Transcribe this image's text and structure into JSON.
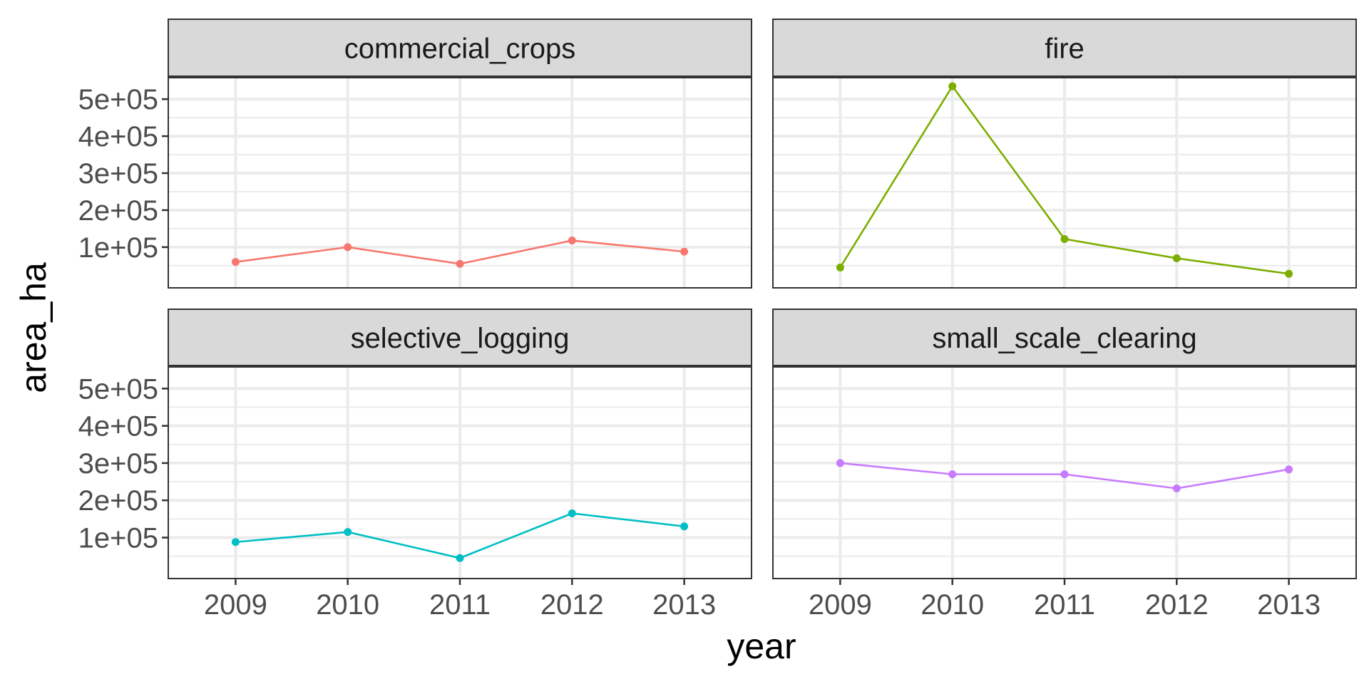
{
  "chart_data": {
    "type": "line",
    "layout": "facet_wrap 2x2",
    "xlabel": "year",
    "ylabel": "area_ha",
    "x": [
      2009,
      2010,
      2011,
      2012,
      2013
    ],
    "x_tick_labels": [
      "2009",
      "2010",
      "2011",
      "2012",
      "2013"
    ],
    "xlim": [
      2008.4,
      2013.6
    ],
    "ylim": [
      -10000,
      560000
    ],
    "y_ticks": [
      100000,
      200000,
      300000,
      400000,
      500000
    ],
    "y_tick_labels": [
      "1e+05",
      "2e+05",
      "3e+05",
      "4e+05",
      "5e+05"
    ],
    "grid": true,
    "series": [
      {
        "name": "commercial_crops",
        "color": "#F8766D",
        "values": [
          60000,
          100000,
          55000,
          118000,
          88000
        ]
      },
      {
        "name": "fire",
        "color": "#7CAE00",
        "values": [
          45000,
          535000,
          122000,
          70000,
          28000
        ]
      },
      {
        "name": "selective_logging",
        "color": "#00BFC4",
        "values": [
          88000,
          115000,
          45000,
          165000,
          130000
        ]
      },
      {
        "name": "small_scale_clearing",
        "color": "#C77CFF",
        "values": [
          300000,
          270000,
          270000,
          232000,
          283000
        ]
      }
    ]
  }
}
